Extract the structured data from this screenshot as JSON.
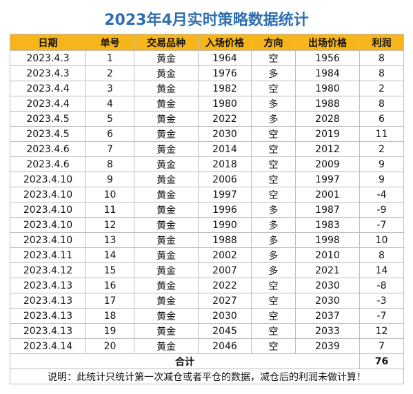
{
  "title": "2023年4月实时策略数据统计",
  "headers": [
    "日期",
    "单号",
    "交易品种",
    "入场价格",
    "方向",
    "出场价格",
    "利润"
  ],
  "rows": [
    {
      "date": "2023.4.3",
      "no": "1",
      "kind": "黄金",
      "entry": "1964",
      "dir": "空",
      "exit": "1956",
      "profit": "8",
      "sign": "pos"
    },
    {
      "date": "2023.4.3",
      "no": "2",
      "kind": "黄金",
      "entry": "1976",
      "dir": "多",
      "exit": "1984",
      "profit": "8",
      "sign": "pos"
    },
    {
      "date": "2023.4.4",
      "no": "3",
      "kind": "黄金",
      "entry": "1982",
      "dir": "空",
      "exit": "1980",
      "profit": "2",
      "sign": "pos"
    },
    {
      "date": "2023.4.4",
      "no": "4",
      "kind": "黄金",
      "entry": "1980",
      "dir": "多",
      "exit": "1988",
      "profit": "8",
      "sign": "pos"
    },
    {
      "date": "2023.4.5",
      "no": "5",
      "kind": "黄金",
      "entry": "2022",
      "dir": "多",
      "exit": "2028",
      "profit": "6",
      "sign": "pos"
    },
    {
      "date": "2023.4.5",
      "no": "6",
      "kind": "黄金",
      "entry": "2030",
      "dir": "空",
      "exit": "2019",
      "profit": "11",
      "sign": "pos"
    },
    {
      "date": "2023.4.6",
      "no": "7",
      "kind": "黄金",
      "entry": "2014",
      "dir": "空",
      "exit": "2012",
      "profit": "2",
      "sign": "pos"
    },
    {
      "date": "2023.4.6",
      "no": "8",
      "kind": "黄金",
      "entry": "2018",
      "dir": "空",
      "exit": "2009",
      "profit": "9",
      "sign": "pos"
    },
    {
      "date": "2023.4.10",
      "no": "9",
      "kind": "黄金",
      "entry": "2006",
      "dir": "空",
      "exit": "1997",
      "profit": "9",
      "sign": "pos"
    },
    {
      "date": "2023.4.10",
      "no": "10",
      "kind": "黄金",
      "entry": "1997",
      "dir": "空",
      "exit": "2001",
      "profit": "-4",
      "sign": "neg"
    },
    {
      "date": "2023.4.10",
      "no": "11",
      "kind": "黄金",
      "entry": "1996",
      "dir": "多",
      "exit": "1987",
      "profit": "-9",
      "sign": "neg"
    },
    {
      "date": "2023.4.10",
      "no": "12",
      "kind": "黄金",
      "entry": "1990",
      "dir": "多",
      "exit": "1983",
      "profit": "-7",
      "sign": "neg"
    },
    {
      "date": "2023.4.10",
      "no": "13",
      "kind": "黄金",
      "entry": "1988",
      "dir": "多",
      "exit": "1998",
      "profit": "10",
      "sign": "pos"
    },
    {
      "date": "2023.4.11",
      "no": "14",
      "kind": "黄金",
      "entry": "2002",
      "dir": "多",
      "exit": "2010",
      "profit": "8",
      "sign": "pos"
    },
    {
      "date": "2023.4.12",
      "no": "15",
      "kind": "黄金",
      "entry": "2007",
      "dir": "多",
      "exit": "2021",
      "profit": "14",
      "sign": "pos"
    },
    {
      "date": "2023.4.13",
      "no": "16",
      "kind": "黄金",
      "entry": "2022",
      "dir": "空",
      "exit": "2030",
      "profit": "-8",
      "sign": "neg"
    },
    {
      "date": "2023.4.13",
      "no": "17",
      "kind": "黄金",
      "entry": "2027",
      "dir": "空",
      "exit": "2030",
      "profit": "-3",
      "sign": "neg"
    },
    {
      "date": "2023.4.13",
      "no": "18",
      "kind": "黄金",
      "entry": "2030",
      "dir": "空",
      "exit": "2037",
      "profit": "-7",
      "sign": "neg"
    },
    {
      "date": "2023.4.13",
      "no": "19",
      "kind": "黄金",
      "entry": "2045",
      "dir": "空",
      "exit": "2033",
      "profit": "12",
      "sign": "pos"
    },
    {
      "date": "2023.4.14",
      "no": "20",
      "kind": "黄金",
      "entry": "2046",
      "dir": "空",
      "exit": "2039",
      "profit": "7",
      "sign": "pos"
    }
  ],
  "total": {
    "label": "合计",
    "value": "76"
  },
  "note": "说明：此统计只统计第一次减仓或者平仓的数据，减仓后的利润未做计算！",
  "colors": {
    "header_bg": "#f6b51b",
    "title": "#2f6fb0",
    "positive": "#e3262d",
    "negative": "#6cba45"
  }
}
